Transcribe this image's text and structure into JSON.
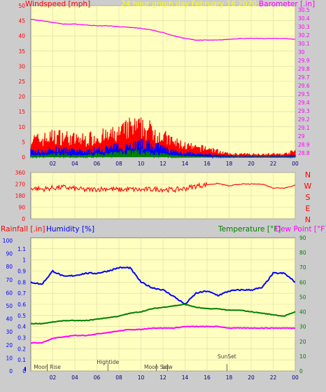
{
  "colors": {
    "background": "#cccccc",
    "plot_background": "#ffffc0",
    "grid": "#d9d9a8",
    "wind_gust": "#ff0000",
    "wind_avg": "#0000ff",
    "wind_min": "#008000",
    "barometer": "#ff00ff",
    "direction": "#ff0000",
    "humidity": "#0000ff",
    "temperature": "#008000",
    "dew_point": "#ff00ff",
    "rainfall": "#ff0000",
    "title": "#ffff00",
    "tick_left": "#ff0000",
    "tick_right": "#ff00ff",
    "tick_bottom": "#000080",
    "annotation": "#404040"
  },
  "chart_data": [
    {
      "type": "line",
      "title": "24 hour graph day   February 16 2020",
      "ylabel": "Windspeed [mph]",
      "y2label": "Barometer [.in]",
      "x_ticks": [
        "02",
        "04",
        "06",
        "08",
        "10",
        "12",
        "14",
        "16",
        "18",
        "20",
        "22",
        "00"
      ],
      "ylim": [
        0,
        50
      ],
      "y_ticks": [
        "0",
        "5",
        "10",
        "15",
        "20",
        "25",
        "30",
        "35",
        "40",
        "45",
        "50"
      ],
      "y2lim": [
        28.75,
        30.55
      ],
      "y2_ticks": [
        "28.8",
        "28.9",
        "29",
        "29.1",
        "29.2",
        "29.3",
        "29.4",
        "29.5",
        "29.6",
        "29.7",
        "29.8",
        "29.9",
        "30",
        "30.1",
        "30.2",
        "30.3",
        "30.4",
        "30.5"
      ],
      "grid": true,
      "x": [
        0,
        1,
        2,
        3,
        4,
        5,
        6,
        7,
        8,
        9,
        10,
        11,
        12,
        13,
        14,
        15,
        16,
        17,
        18,
        19,
        20,
        21,
        22,
        23,
        24
      ],
      "series": [
        {
          "key": "gust",
          "values": [
            6,
            6,
            7,
            7,
            6,
            6,
            7,
            7,
            8,
            10,
            10,
            9,
            7,
            5,
            4,
            3,
            3,
            2,
            1,
            1,
            1,
            1,
            1,
            1,
            2
          ]
        },
        {
          "key": "avg",
          "values": [
            2,
            2,
            2.5,
            2.5,
            2,
            2,
            2.5,
            3,
            3.5,
            4,
            4.5,
            4,
            3,
            2,
            1.5,
            1,
            1,
            0.5,
            0.3,
            0.2,
            0.2,
            0.2,
            0.2,
            0.2,
            0.5
          ]
        },
        {
          "key": "min",
          "values": [
            0.5,
            0.5,
            1,
            1,
            0.5,
            0.5,
            1,
            1,
            1.5,
            2,
            2,
            1.5,
            1,
            0.5,
            0.3,
            0.2,
            0,
            0,
            0,
            0,
            0,
            0,
            0,
            0,
            0
          ]
        },
        {
          "key": "barometer",
          "values": [
            30.39,
            30.37,
            30.35,
            30.33,
            30.33,
            30.32,
            30.31,
            30.31,
            30.3,
            30.29,
            30.28,
            30.26,
            30.23,
            30.19,
            30.16,
            30.14,
            30.14,
            30.14,
            30.15,
            30.16,
            30.16,
            30.16,
            30.16,
            30.16,
            30.15
          ]
        }
      ]
    },
    {
      "type": "line",
      "title": "",
      "ylabel": "",
      "ylim": [
        0,
        360
      ],
      "y_ticks": [
        "0",
        "90",
        "180",
        "270",
        "360"
      ],
      "compass_labels": [
        "N",
        "W",
        "S",
        "E",
        "N"
      ],
      "grid": true,
      "x": [
        0,
        1,
        2,
        3,
        4,
        5,
        6,
        7,
        8,
        9,
        10,
        11,
        12,
        13,
        14,
        15,
        16,
        17,
        18,
        19,
        20,
        21,
        22,
        23,
        24
      ],
      "series": [
        {
          "key": "direction",
          "values": [
            240,
            230,
            240,
            245,
            235,
            225,
            230,
            235,
            225,
            230,
            225,
            230,
            230,
            225,
            235,
            255,
            265,
            275,
            255,
            270,
            270,
            270,
            240,
            240,
            260
          ]
        }
      ]
    },
    {
      "type": "line",
      "title": "",
      "ylabel": "Rainfall [.in]",
      "y1label": "Humidity [%]",
      "y2label": "Temperature [°F]",
      "y3label": "Dew Point [°F]",
      "x_ticks": [
        "02",
        "04",
        "06",
        "08",
        "10",
        "12",
        "14",
        "16",
        "18",
        "20",
        "22",
        "00"
      ],
      "rain_lim": [
        0,
        100
      ],
      "rain_ticks": [
        "0",
        "10",
        "20",
        "30",
        "40",
        "50",
        "60",
        "70",
        "80",
        "90",
        "100"
      ],
      "humidity_ticks": [
        "0",
        "0.1",
        "0.2",
        "0.3",
        "0.4",
        "0.5",
        "0.6",
        "0.7",
        "0.8",
        "0.9",
        "1",
        "1.1"
      ],
      "ylim": [
        0,
        1.2
      ],
      "y2lim": [
        0,
        90
      ],
      "y2_ticks": [
        "0",
        "10",
        "20",
        "30",
        "40",
        "50",
        "60",
        "70",
        "80",
        "90"
      ],
      "grid": true,
      "x": [
        0,
        1,
        2,
        3,
        4,
        5,
        6,
        7,
        8,
        9,
        10,
        11,
        12,
        13,
        14,
        15,
        16,
        17,
        18,
        19,
        20,
        21,
        22,
        23,
        24
      ],
      "series": [
        {
          "key": "humidity",
          "values": [
            0.8,
            0.78,
            0.9,
            0.85,
            0.86,
            0.88,
            0.88,
            0.9,
            0.93,
            0.93,
            0.8,
            0.75,
            0.73,
            0.67,
            0.6,
            0.7,
            0.72,
            0.68,
            0.72,
            0.73,
            0.73,
            0.75,
            0.88,
            0.88,
            0.8
          ]
        },
        {
          "key": "temperature",
          "values": [
            32,
            32,
            33,
            34,
            34,
            34,
            35,
            36,
            37,
            39,
            40,
            42,
            43,
            44,
            45,
            43,
            42,
            42,
            41,
            41,
            40,
            39,
            38,
            37,
            40
          ]
        },
        {
          "key": "dewpoint",
          "values": [
            19,
            19,
            22,
            23,
            24,
            24,
            25,
            26,
            27,
            28,
            28,
            29,
            29,
            29,
            30,
            30,
            30,
            30,
            29,
            29,
            29,
            29,
            29,
            29,
            29
          ]
        }
      ],
      "annotations": [
        {
          "label": "Moon Rise",
          "x": 1.5
        },
        {
          "label": "Hightide",
          "x": 7.0
        },
        {
          "label": "Moon Set",
          "x": 11.4
        },
        {
          "label": "Low",
          "x": 12.4
        },
        {
          "label": "SunSet",
          "x": 17.8
        }
      ]
    }
  ]
}
